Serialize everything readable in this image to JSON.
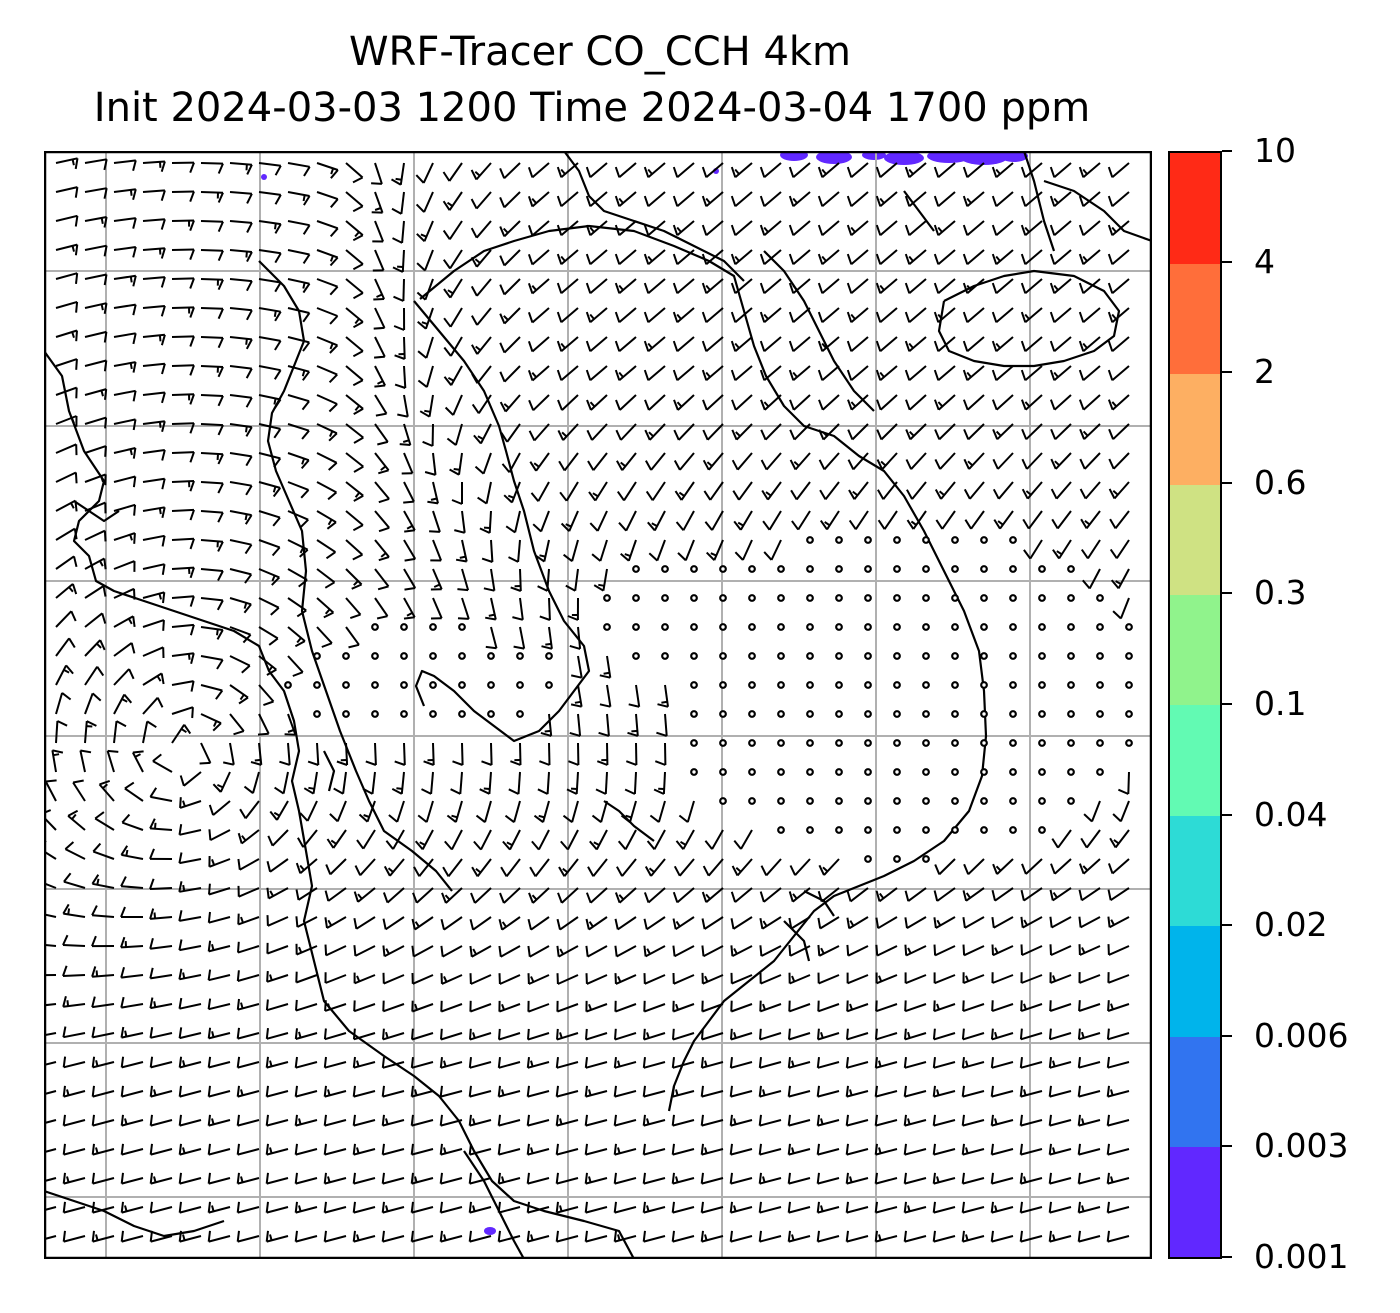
{
  "title": {
    "line1": "WRF-Tracer CO_CCH 4km",
    "line2": "Init 2024-03-03 1200 Time 2024-03-04 1700 ppm"
  },
  "colorbar": {
    "levels": [
      "0.001",
      "0.003",
      "0.006",
      "0.02",
      "0.04",
      "0.1",
      "0.3",
      "0.6",
      "2",
      "4",
      "10"
    ],
    "colors": [
      "#6128ff",
      "#3174f0",
      "#00b4eb",
      "#2ddbd6",
      "#62fab3",
      "#90f38c",
      "#cfe283",
      "#fdaf62",
      "#ff6e3a",
      "#ff2a16"
    ]
  },
  "map": {
    "background": "#ffffff",
    "grid_color": "#b0b0b0",
    "coast_color": "#000000",
    "barb_color": "#000000",
    "tracer_color": "#6128ff"
  }
}
